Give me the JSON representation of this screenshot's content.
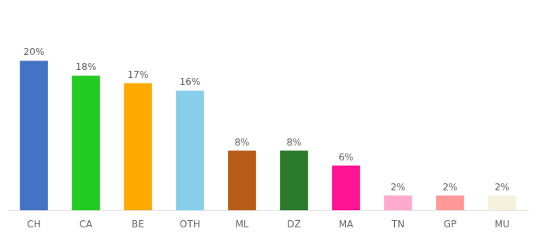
{
  "chart_data": {
    "type": "bar",
    "categories": [
      "CH",
      "CA",
      "BE",
      "OTH",
      "ML",
      "DZ",
      "MA",
      "TN",
      "GP",
      "MU"
    ],
    "values": [
      20,
      18,
      17,
      16,
      8,
      8,
      6,
      2,
      2,
      2
    ],
    "value_labels": [
      "20%",
      "18%",
      "17%",
      "16%",
      "8%",
      "8%",
      "6%",
      "2%",
      "2%",
      "2%"
    ],
    "colors": [
      "#4472c4",
      "#22cc22",
      "#ffaa00",
      "#87ceeb",
      "#b85c1a",
      "#2a7a2a",
      "#ff1493",
      "#ffaacc",
      "#ff9999",
      "#f5f0dc"
    ],
    "ylim": [
      0,
      26
    ],
    "grid": false,
    "data_labels": true,
    "tick_labels": "x"
  }
}
